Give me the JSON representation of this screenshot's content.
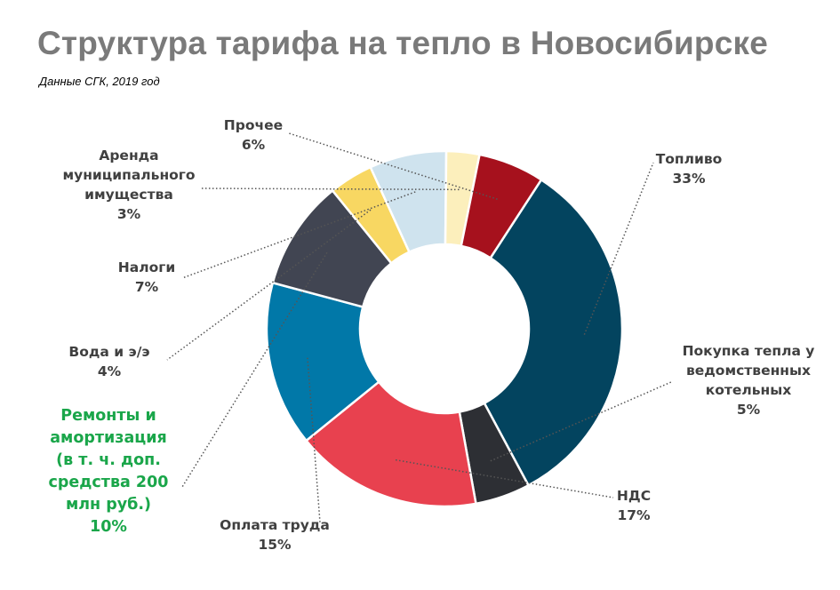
{
  "title": "Структура тарифа на тепло в Новосибирске",
  "subtitle": "Данные СГК, 2019 год",
  "chart_data": {
    "type": "pie",
    "variant": "donut",
    "title": "Структура тарифа на тепло в Новосибирске",
    "subtitle": "Данные СГК, 2019 год",
    "unit": "%",
    "slices": [
      {
        "name": "Топливо",
        "value": 33,
        "label": "33%",
        "color": "#03445f"
      },
      {
        "name": "Покупка тепла у ведомственных котельных",
        "value": 5,
        "label": "5%",
        "color": "#2d2f34"
      },
      {
        "name": "НДС",
        "value": 17,
        "label": "17%",
        "color": "#e8414f"
      },
      {
        "name": "Оплата труда",
        "value": 15,
        "label": "15%",
        "color": "#0178a8"
      },
      {
        "name": "Ремонты и амортизация (в т. ч. доп. средства 200 млн руб.)",
        "value": 10,
        "label": "10%",
        "color": "#414552",
        "highlight_color": "#1aa64a"
      },
      {
        "name": "Вода и э/э",
        "value": 4,
        "label": "4%",
        "color": "#f8d762"
      },
      {
        "name": "Налоги",
        "value": 7,
        "label": "7%",
        "color": "#cfe3ee"
      },
      {
        "name": "Аренда муниципального имущества",
        "value": 3,
        "label": "3%",
        "color": "#fcefbc"
      },
      {
        "name": "Прочее",
        "value": 6,
        "label": "6%",
        "color": "#a6111d"
      }
    ]
  }
}
